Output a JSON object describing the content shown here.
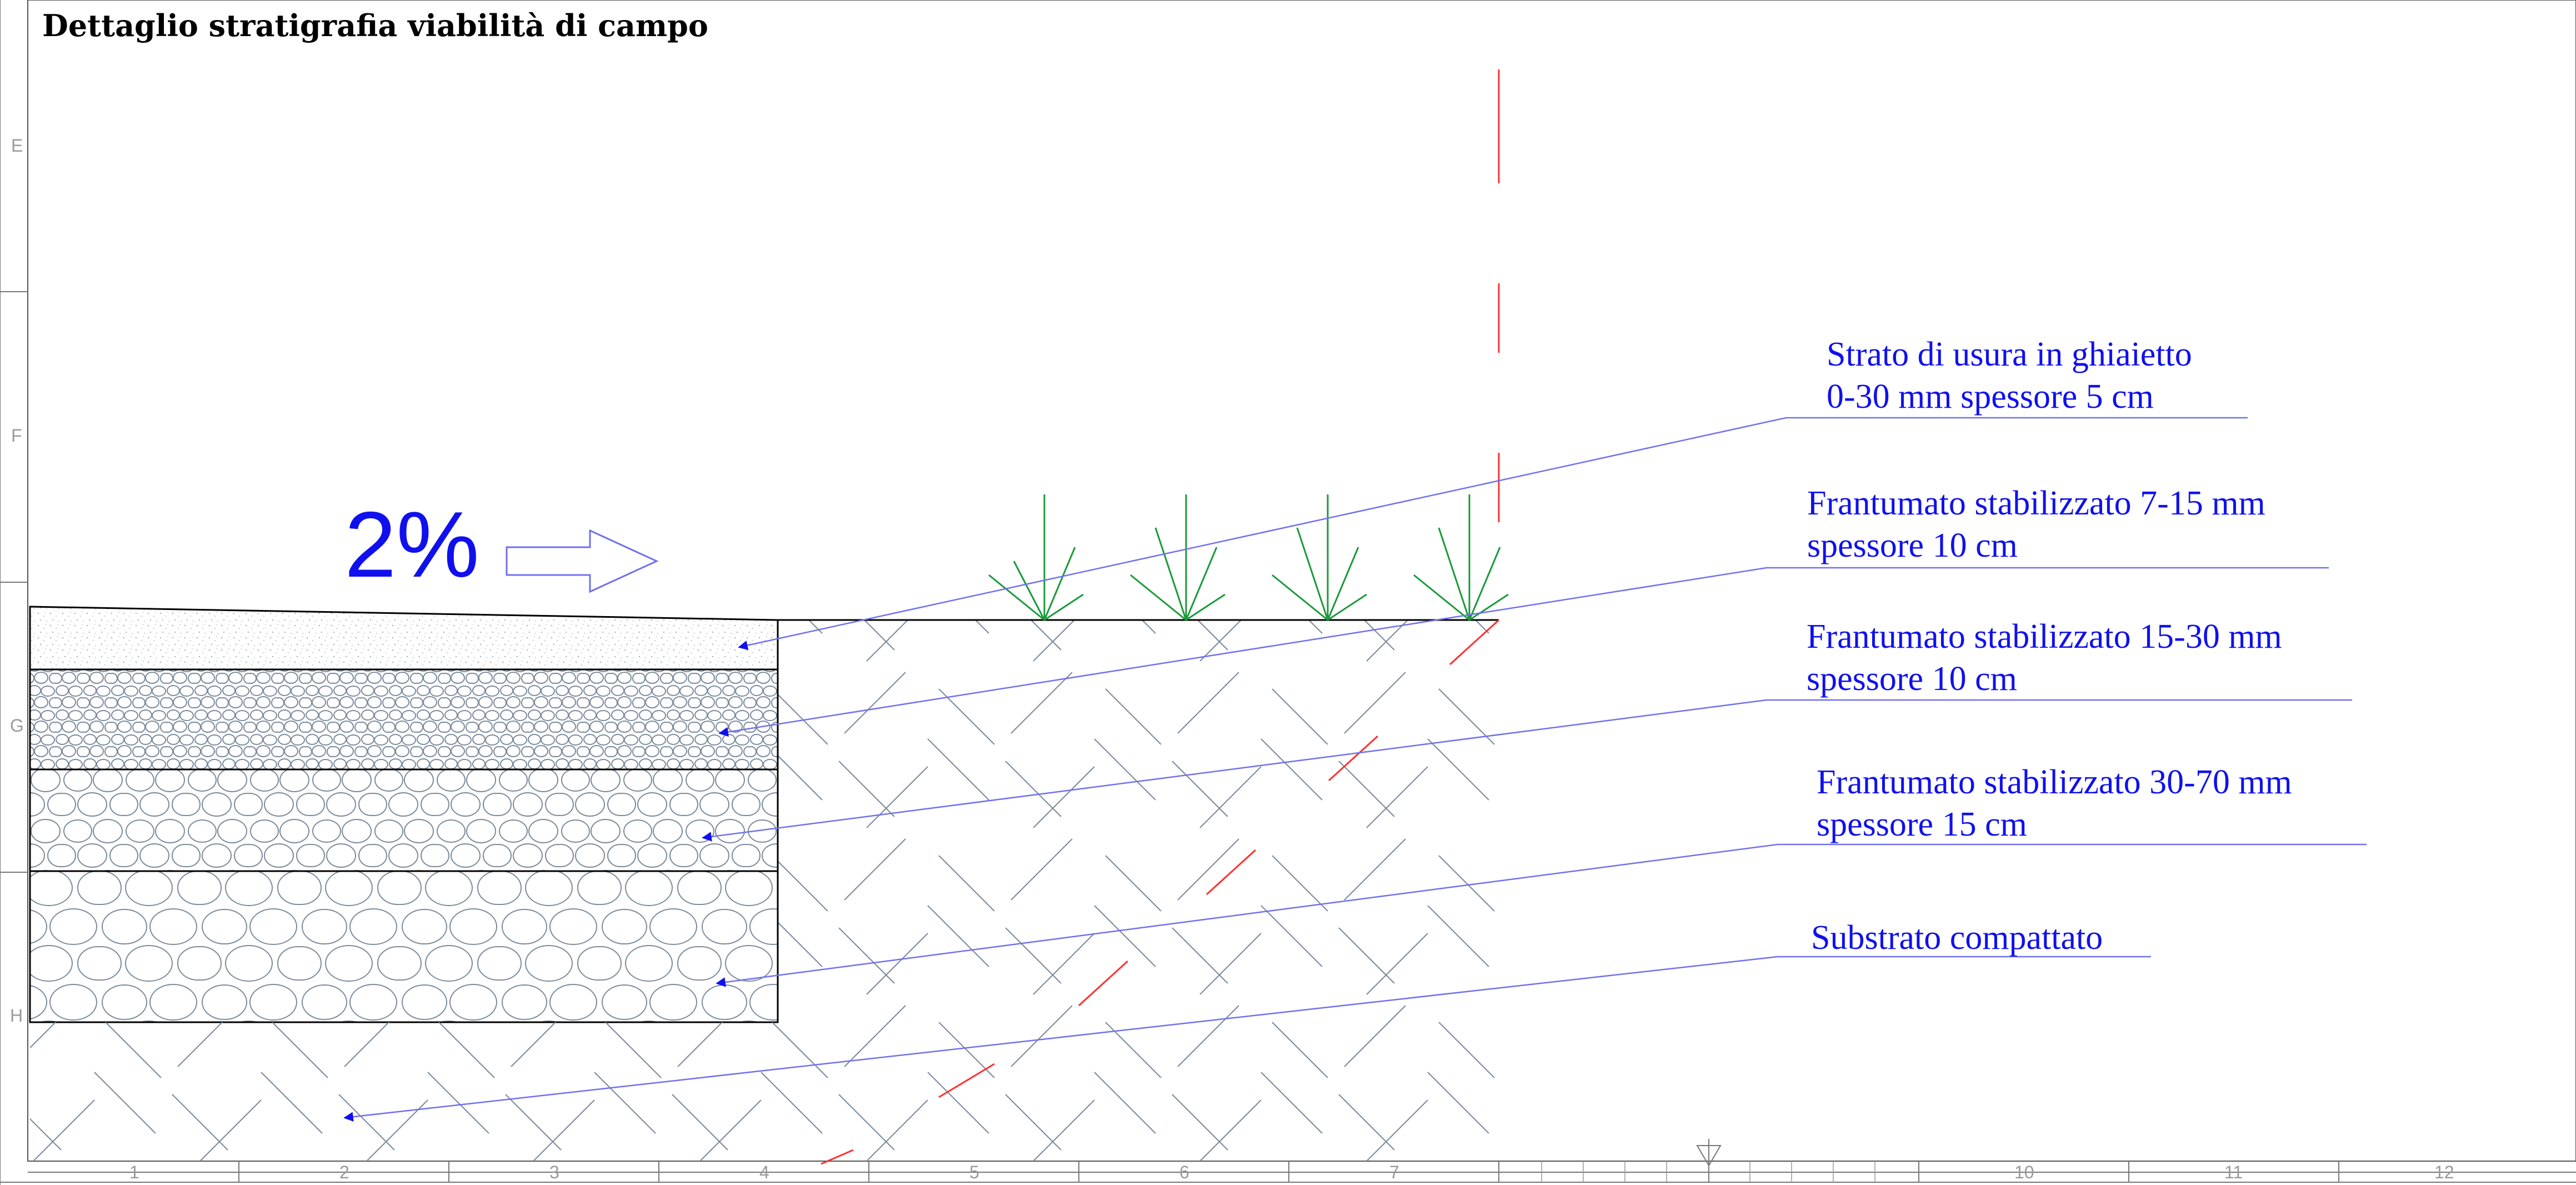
{
  "title": "Dettaglio stratigrafia viabilità di campo",
  "slope_label": "2%",
  "callouts": [
    {
      "line1": "Strato di usura in ghiaietto",
      "line2": "0-30 mm spessore 5 cm"
    },
    {
      "line1": "Frantumato stabilizzato 7-15 mm",
      "line2": "spessore 10 cm"
    },
    {
      "line1": "Frantumato stabilizzato 15-30 mm",
      "line2": "spessore 10 cm"
    },
    {
      "line1": "Frantumato stabilizzato 30-70 mm",
      "line2": "spessore 15 cm"
    },
    {
      "line1": "Substrato compattato",
      "line2": ""
    }
  ],
  "grid_rows": [
    "E",
    "F",
    "G",
    "H"
  ],
  "grid_cols": [
    "1",
    "2",
    "3",
    "4",
    "5",
    "6",
    "7",
    "10",
    "11",
    "12"
  ],
  "colors": {
    "annotation": "#1010ee",
    "leader": "#7070f0",
    "outline": "#000000",
    "hatch": "#7b8b9b",
    "axis": "#ff3030",
    "vegetation": "#1a9a3a"
  }
}
